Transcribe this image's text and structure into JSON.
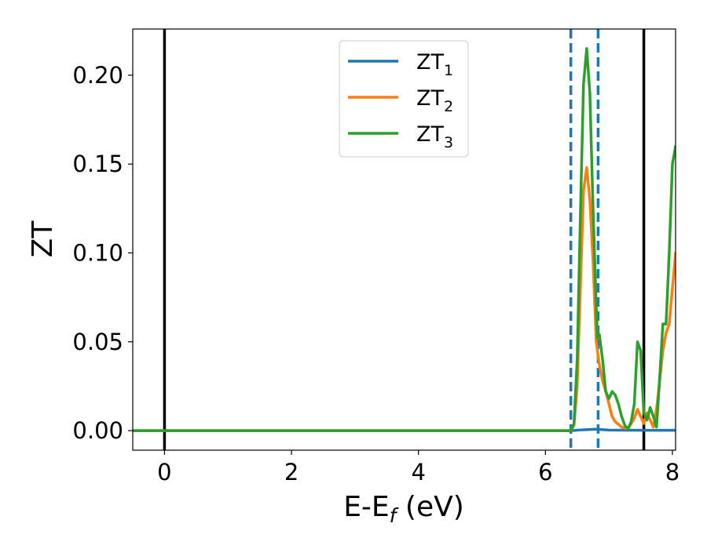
{
  "chart_data": {
    "type": "line",
    "xlabel": {
      "main": "E-E",
      "sub": "f",
      "tail": " (eV)"
    },
    "ylabel": "ZT",
    "xlim": [
      -0.5,
      8.05
    ],
    "ylim": [
      -0.011,
      0.226
    ],
    "xticks": [
      0,
      2,
      4,
      6,
      8
    ],
    "yticks": [
      0.0,
      0.05,
      0.1,
      0.15,
      0.2
    ],
    "ytick_labels": [
      "0.00",
      "0.05",
      "0.10",
      "0.15",
      "0.20"
    ],
    "grid": false,
    "legend_position": "top-center",
    "vlines": [
      {
        "x": 0.0,
        "style": "solid",
        "color": "#000000"
      },
      {
        "x": 7.55,
        "style": "solid",
        "color": "#000000"
      },
      {
        "x": 6.4,
        "style": "dashed",
        "color": "#1f77b4"
      },
      {
        "x": 6.83,
        "style": "dashed",
        "color": "#1f77b4"
      }
    ],
    "series": [
      {
        "name": {
          "main": "ZT",
          "sub": "1"
        },
        "color": "#1f77b4",
        "x": [
          -0.5,
          6.4,
          6.6,
          6.8,
          7.0,
          7.5,
          8.05
        ],
        "y": [
          0,
          0,
          0.0005,
          0.0008,
          0.0003,
          0.0002,
          0.0002
        ]
      },
      {
        "name": {
          "main": "ZT",
          "sub": "2"
        },
        "color": "#ff7f0e",
        "x": [
          -0.5,
          6.4,
          6.45,
          6.5,
          6.55,
          6.6,
          6.65,
          6.7,
          6.75,
          6.8,
          6.85,
          6.9,
          6.95,
          7.0,
          7.05,
          7.1,
          7.2,
          7.3,
          7.4,
          7.45,
          7.5,
          7.55,
          7.6,
          7.65,
          7.7,
          7.75,
          7.8,
          7.85,
          7.9,
          7.95,
          8.0,
          8.05
        ],
        "y": [
          0,
          0,
          0.003,
          0.025,
          0.08,
          0.135,
          0.148,
          0.13,
          0.095,
          0.05,
          0.037,
          0.028,
          0.022,
          0.015,
          0.008,
          0.005,
          0.002,
          0.001,
          0.007,
          0.012,
          0.008,
          0.004,
          0.01,
          0.006,
          0.002,
          0.012,
          0.028,
          0.045,
          0.055,
          0.06,
          0.08,
          0.1
        ]
      },
      {
        "name": {
          "main": "ZT",
          "sub": "3"
        },
        "color": "#2ca02c",
        "x": [
          -0.5,
          6.4,
          6.45,
          6.5,
          6.55,
          6.6,
          6.65,
          6.7,
          6.75,
          6.8,
          6.82,
          6.85,
          6.9,
          6.95,
          7.0,
          7.05,
          7.1,
          7.15,
          7.2,
          7.25,
          7.3,
          7.35,
          7.4,
          7.45,
          7.5,
          7.55,
          7.6,
          7.65,
          7.7,
          7.75,
          7.8,
          7.85,
          7.9,
          7.95,
          8.0,
          8.05
        ],
        "y": [
          0,
          0,
          0.004,
          0.04,
          0.12,
          0.195,
          0.215,
          0.19,
          0.125,
          0.07,
          0.052,
          0.054,
          0.04,
          0.022,
          0.018,
          0.022,
          0.02,
          0.015,
          0.008,
          0.003,
          0.001,
          0.005,
          0.015,
          0.05,
          0.045,
          0.01,
          0.006,
          0.013,
          0.008,
          0.002,
          0.03,
          0.06,
          0.06,
          0.1,
          0.15,
          0.16
        ]
      }
    ]
  }
}
